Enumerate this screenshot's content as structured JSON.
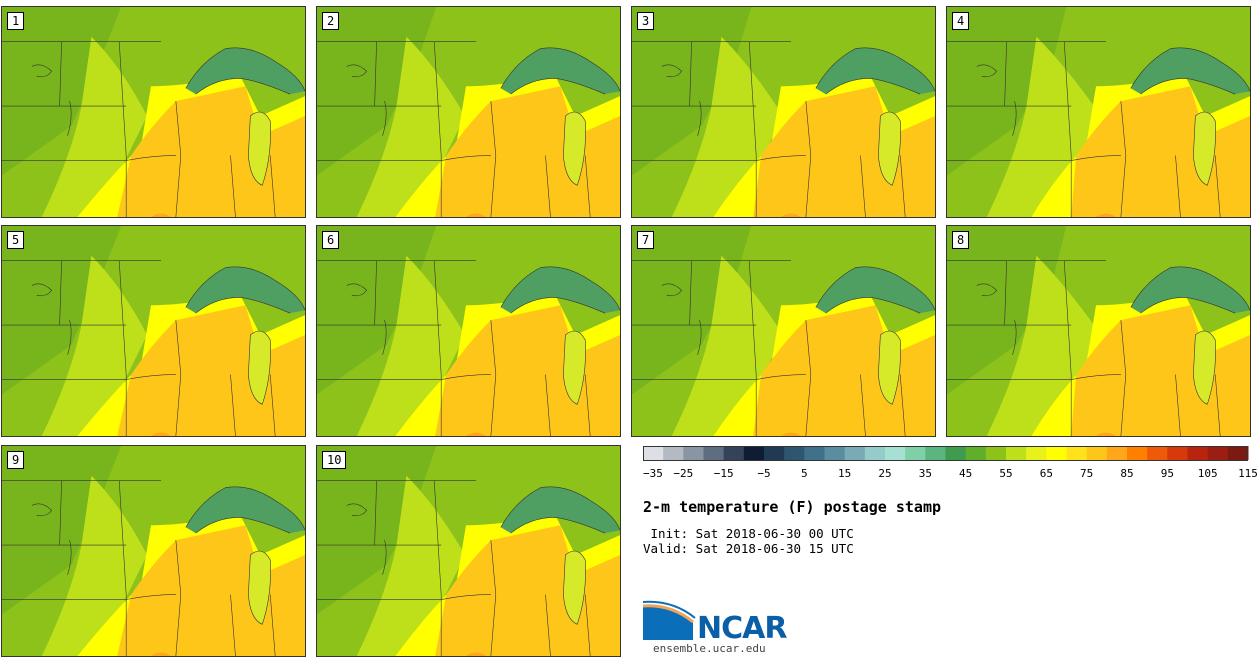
{
  "panels": [
    {
      "label": "1"
    },
    {
      "label": "2"
    },
    {
      "label": "3"
    },
    {
      "label": "4"
    },
    {
      "label": "5"
    },
    {
      "label": "6"
    },
    {
      "label": "7"
    },
    {
      "label": "8"
    },
    {
      "label": "9"
    },
    {
      "label": "10"
    }
  ],
  "colorbar": {
    "tick_labels": [
      "−35",
      "−25",
      "−15",
      "−5",
      "5",
      "15",
      "25",
      "35",
      "45",
      "55",
      "65",
      "75",
      "85",
      "95",
      "105",
      "115"
    ],
    "colors": [
      "#dcdfe3",
      "#b4bac2",
      "#8a95a3",
      "#5f6d80",
      "#34435a",
      "#101c33",
      "#1f3a52",
      "#2f5670",
      "#41708a",
      "#5a8da0",
      "#78abb5",
      "#95cbc8",
      "#a5e0d2",
      "#7fcfa8",
      "#5ab57e",
      "#3f9b4e",
      "#5fae2c",
      "#8cc21a",
      "#bde01a",
      "#e8f21a",
      "#ffff00",
      "#ffe21a",
      "#ffc61a",
      "#ffa61a",
      "#ff7f00",
      "#ef5a0a",
      "#d63a0a",
      "#b8250f",
      "#9a1e12",
      "#7a1a10"
    ]
  },
  "title": "2-m temperature (F) postage stamp",
  "init_line": " Init: Sat 2018-06-30 00 UTC",
  "valid_line": "Valid: Sat 2018-06-30 15 UTC",
  "logo": {
    "text": "NCAR"
  },
  "site": "ensemble.ucar.edu",
  "colors": {
    "green_dark": "#6fae1e",
    "green": "#8cc21a",
    "yellow_green": "#bde01a",
    "yellow": "#ffff00",
    "orange": "#ffc61a",
    "deep_orange": "#ffa61a",
    "lake": "#4f9f63",
    "lake_mi": "#d7ea2a"
  }
}
